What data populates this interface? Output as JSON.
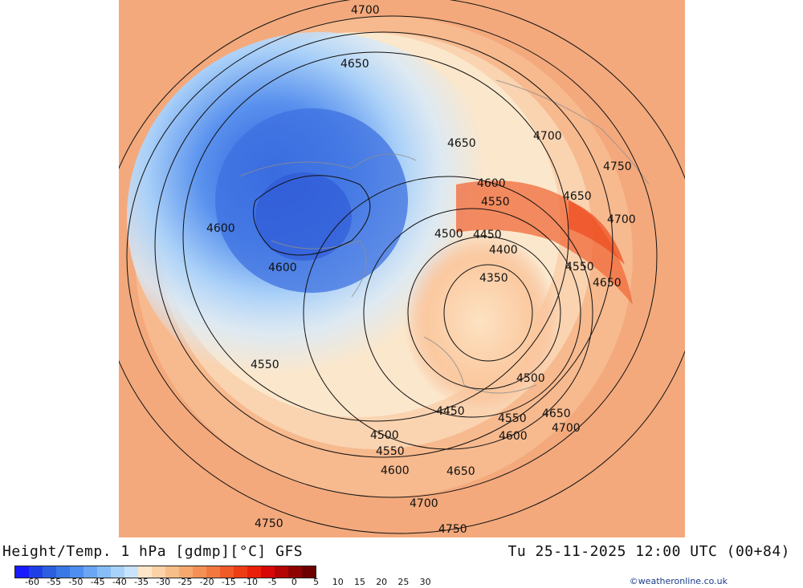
{
  "title_left": "Height/Temp. 1 hPa [gdmp][°C] GFS",
  "title_right": "Tu 25-11-2025 12:00 UTC (00+84)",
  "credit": "©weatheronline.co.uk",
  "colorbar": {
    "colors": [
      "#1a1aff",
      "#1f3fe6",
      "#2b5fe0",
      "#3a78e6",
      "#4d8ef0",
      "#6aa6f3",
      "#86bdf6",
      "#a8d2fa",
      "#c8e4fc",
      "#fde6c8",
      "#fbd2a8",
      "#f8be8a",
      "#f6a96e",
      "#f49056",
      "#f27840",
      "#f05a28",
      "#ee3c14",
      "#ea2008",
      "#d80808",
      "#b40404",
      "#900202",
      "#6c0000"
    ],
    "tick_labels": [
      "-60",
      "-55",
      "-50",
      "-45",
      "-40",
      "-35",
      "-30",
      "-25",
      "-20",
      "-15",
      "-10",
      "-5",
      "0",
      "5",
      "10",
      "15",
      "20",
      "25",
      "30"
    ]
  },
  "contour_labels": [
    "4700",
    "4650",
    "4650",
    "4700",
    "4750",
    "4600",
    "4550",
    "4650",
    "4700",
    "4500",
    "4450",
    "4600",
    "4400",
    "4550",
    "4600",
    "4650",
    "4350",
    "4550",
    "4500",
    "4450",
    "4550",
    "4650",
    "4500",
    "4600",
    "4700",
    "4550",
    "4600",
    "4650",
    "4700",
    "4750",
    "4750"
  ],
  "icons": {
    "map": "weather-map"
  }
}
